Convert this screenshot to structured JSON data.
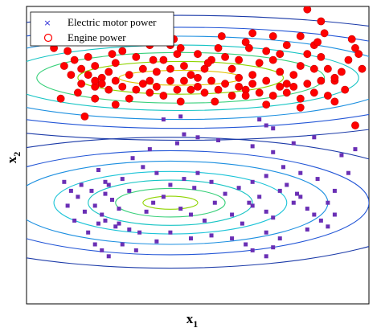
{
  "chart_data": {
    "type": "scatter",
    "title": "",
    "xlabel": "x",
    "xlabel_sub": "1",
    "ylabel": "x",
    "ylabel_sub": "2",
    "xlim": [
      0,
      100
    ],
    "ylim": [
      0,
      100
    ],
    "grid": false,
    "ticks_visible": false,
    "legend_position": "top-left",
    "series": [
      {
        "name": "Electric motor power",
        "marker": "square",
        "color": "#6a2fb5",
        "points": [
          [
            20,
            20
          ],
          [
            18,
            24
          ],
          [
            22,
            30
          ],
          [
            25,
            35
          ],
          [
            15,
            36
          ],
          [
            12,
            33
          ],
          [
            19,
            38
          ],
          [
            24,
            40
          ],
          [
            28,
            42
          ],
          [
            16,
            40
          ],
          [
            14,
            28
          ],
          [
            20,
            33
          ],
          [
            26,
            26
          ],
          [
            30,
            25
          ],
          [
            33,
            24
          ],
          [
            35,
            31
          ],
          [
            40,
            36
          ],
          [
            45,
            32
          ],
          [
            48,
            30
          ],
          [
            52,
            28
          ],
          [
            55,
            34
          ],
          [
            60,
            30
          ],
          [
            63,
            27
          ],
          [
            65,
            34
          ],
          [
            68,
            36
          ],
          [
            70,
            31
          ],
          [
            72,
            29
          ],
          [
            74,
            38
          ],
          [
            76,
            40
          ],
          [
            78,
            34
          ],
          [
            80,
            36
          ],
          [
            82,
            32
          ],
          [
            84,
            30
          ],
          [
            86,
            28
          ],
          [
            88,
            34
          ],
          [
            90,
            38
          ],
          [
            85,
            42
          ],
          [
            80,
            44
          ],
          [
            75,
            46
          ],
          [
            70,
            43
          ],
          [
            66,
            41
          ],
          [
            62,
            39
          ],
          [
            58,
            37
          ],
          [
            54,
            41
          ],
          [
            50,
            44
          ],
          [
            46,
            42
          ],
          [
            42,
            40
          ],
          [
            38,
            44
          ],
          [
            34,
            46
          ],
          [
            30,
            38
          ],
          [
            27,
            32
          ],
          [
            23,
            28
          ],
          [
            21,
            27
          ],
          [
            17,
            31
          ],
          [
            13,
            38
          ],
          [
            11,
            41
          ],
          [
            21,
            45
          ],
          [
            31,
            49
          ],
          [
            36,
            52
          ],
          [
            44,
            54
          ],
          [
            50,
            56
          ],
          [
            56,
            55
          ],
          [
            66,
            53
          ],
          [
            72,
            51
          ],
          [
            78,
            54
          ],
          [
            84,
            56
          ],
          [
            92,
            50
          ],
          [
            96,
            52
          ],
          [
            94,
            44
          ],
          [
            90,
            30
          ],
          [
            88,
            26
          ],
          [
            82,
            25
          ],
          [
            74,
            22
          ],
          [
            70,
            24
          ],
          [
            64,
            20
          ],
          [
            60,
            22
          ],
          [
            54,
            23
          ],
          [
            48,
            22
          ],
          [
            42,
            24
          ],
          [
            38,
            21
          ],
          [
            32,
            18
          ],
          [
            28,
            20
          ],
          [
            24,
            16
          ],
          [
            22,
            18
          ],
          [
            66,
            18
          ],
          [
            70,
            16
          ],
          [
            72,
            19
          ],
          [
            46,
            57
          ],
          [
            68,
            62
          ],
          [
            70,
            60
          ],
          [
            72,
            59
          ],
          [
            45,
            63
          ],
          [
            40,
            62
          ],
          [
            27,
            27
          ],
          [
            23,
            37
          ],
          [
            23,
            41
          ],
          [
            37,
            34
          ],
          [
            66,
            33
          ],
          [
            49,
            39
          ],
          [
            79,
            37
          ]
        ]
      },
      {
        "name": "Engine power",
        "marker": "circle",
        "color": "#ff0000",
        "points": [
          [
            8,
            86
          ],
          [
            12,
            85
          ],
          [
            15,
            88
          ],
          [
            18,
            83
          ],
          [
            20,
            80
          ],
          [
            22,
            76
          ],
          [
            24,
            78
          ],
          [
            26,
            81
          ],
          [
            28,
            85
          ],
          [
            30,
            88
          ],
          [
            32,
            83
          ],
          [
            34,
            79
          ],
          [
            36,
            75
          ],
          [
            38,
            78
          ],
          [
            40,
            82
          ],
          [
            42,
            87
          ],
          [
            44,
            84
          ],
          [
            46,
            80
          ],
          [
            48,
            77
          ],
          [
            50,
            73
          ],
          [
            52,
            79
          ],
          [
            54,
            82
          ],
          [
            56,
            86
          ],
          [
            58,
            83
          ],
          [
            60,
            79
          ],
          [
            62,
            76
          ],
          [
            64,
            72
          ],
          [
            66,
            77
          ],
          [
            68,
            81
          ],
          [
            70,
            85
          ],
          [
            72,
            82
          ],
          [
            74,
            78
          ],
          [
            76,
            74
          ],
          [
            78,
            77
          ],
          [
            80,
            80
          ],
          [
            82,
            84
          ],
          [
            84,
            87
          ],
          [
            86,
            83
          ],
          [
            88,
            79
          ],
          [
            90,
            75
          ],
          [
            92,
            78
          ],
          [
            94,
            82
          ],
          [
            96,
            86
          ],
          [
            98,
            79
          ],
          [
            93,
            72
          ],
          [
            88,
            70
          ],
          [
            84,
            71
          ],
          [
            80,
            69
          ],
          [
            76,
            71
          ],
          [
            72,
            70
          ],
          [
            68,
            71
          ],
          [
            64,
            70
          ],
          [
            60,
            70
          ],
          [
            56,
            72
          ],
          [
            52,
            71
          ],
          [
            48,
            72
          ],
          [
            44,
            72
          ],
          [
            40,
            70
          ],
          [
            36,
            71
          ],
          [
            32,
            72
          ],
          [
            28,
            73
          ],
          [
            24,
            72
          ],
          [
            20,
            73
          ],
          [
            16,
            74
          ],
          [
            13,
            77
          ],
          [
            11,
            80
          ],
          [
            14,
            82
          ],
          [
            16,
            79
          ],
          [
            18,
            77
          ],
          [
            20,
            75
          ],
          [
            22,
            74
          ],
          [
            26,
            75
          ],
          [
            30,
            77
          ],
          [
            34,
            74
          ],
          [
            38,
            73
          ],
          [
            42,
            75
          ],
          [
            46,
            75
          ],
          [
            50,
            76
          ],
          [
            54,
            75
          ],
          [
            58,
            74
          ],
          [
            62,
            73
          ],
          [
            66,
            74
          ],
          [
            70,
            75
          ],
          [
            74,
            73
          ],
          [
            78,
            73
          ],
          [
            82,
            74
          ],
          [
            86,
            75
          ],
          [
            90,
            76
          ],
          [
            64,
            88
          ],
          [
            66,
            91
          ],
          [
            40,
            91
          ],
          [
            24,
            92
          ],
          [
            22,
            88
          ],
          [
            28,
            90
          ],
          [
            36,
            87
          ],
          [
            43,
            89
          ],
          [
            57,
            90
          ],
          [
            72,
            90
          ],
          [
            76,
            87
          ],
          [
            80,
            90
          ],
          [
            87,
            91
          ],
          [
            95,
            89
          ],
          [
            82,
            99
          ],
          [
            86,
            95
          ],
          [
            17,
            63
          ],
          [
            26,
            67
          ],
          [
            37,
            82
          ],
          [
            50,
            84
          ],
          [
            62,
            82
          ],
          [
            74,
            84
          ],
          [
            84,
            79
          ],
          [
            90,
            68
          ],
          [
            96,
            60
          ],
          [
            20,
            69
          ],
          [
            30,
            69
          ],
          [
            45,
            68
          ],
          [
            55,
            68
          ],
          [
            70,
            67
          ],
          [
            80,
            66
          ],
          [
            15,
            71
          ],
          [
            10,
            69
          ],
          [
            25,
            84
          ],
          [
            45,
            86
          ],
          [
            65,
            86
          ],
          [
            85,
            88
          ],
          [
            97,
            84
          ],
          [
            42,
            79
          ],
          [
            53,
            81
          ]
        ]
      }
    ],
    "contour_groups": [
      {
        "series": "Engine power",
        "center": [
          45,
          76
        ],
        "radii": [
          [
            18,
            2.5
          ],
          [
            30,
            5.5
          ],
          [
            42,
            8.5
          ],
          [
            52,
            11
          ],
          [
            64,
            14
          ],
          [
            80,
            17
          ],
          [
            98,
            21
          ]
        ],
        "colors": [
          "#e0c000",
          "#8fd400",
          "#38d07a",
          "#16c4c4",
          "#1c8fe0",
          "#2255d6",
          "#1b3aa8"
        ]
      },
      {
        "series": "Electric motor power",
        "center": [
          42,
          34
        ],
        "radii": [
          [
            8,
            2.2
          ],
          [
            16,
            4.8
          ],
          [
            24,
            7.6
          ],
          [
            34,
            10.5
          ],
          [
            46,
            14
          ],
          [
            58,
            17.5
          ],
          [
            78,
            22
          ]
        ],
        "colors": [
          "#8fd400",
          "#38d07a",
          "#16c4c4",
          "#1cc4d8",
          "#1c8fe0",
          "#2255d6",
          "#1b3aa8"
        ]
      }
    ]
  }
}
